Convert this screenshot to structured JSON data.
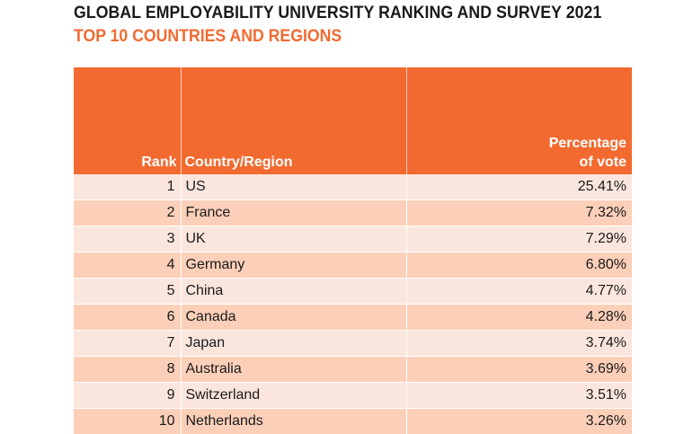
{
  "title": "GLOBAL EMPLOYABILITY UNIVERSITY RANKING AND SURVEY 2021",
  "subtitle": "TOP 10 COUNTRIES AND REGIONS",
  "table": {
    "headers": {
      "rank": "Rank",
      "country": "Country/Region",
      "percentage_line1": "Percentage",
      "percentage_line2": "of vote"
    },
    "rows": [
      {
        "rank": "1",
        "country": "US",
        "percentage": "25.41%"
      },
      {
        "rank": "2",
        "country": "France",
        "percentage": "7.32%"
      },
      {
        "rank": "3",
        "country": "UK",
        "percentage": "7.29%"
      },
      {
        "rank": "4",
        "country": "Germany",
        "percentage": "6.80%"
      },
      {
        "rank": "5",
        "country": "China",
        "percentage": "4.77%"
      },
      {
        "rank": "6",
        "country": "Canada",
        "percentage": "4.28%"
      },
      {
        "rank": "7",
        "country": "Japan",
        "percentage": "3.74%"
      },
      {
        "rank": "8",
        "country": "Australia",
        "percentage": "3.69%"
      },
      {
        "rank": "9",
        "country": "Switzerland",
        "percentage": "3.51%"
      },
      {
        "rank": "10",
        "country": "Netherlands",
        "percentage": "3.26%"
      }
    ]
  },
  "colors": {
    "accent": "#f26a30",
    "row_light": "#fbe6dd",
    "row_dark": "#fccfb9"
  }
}
